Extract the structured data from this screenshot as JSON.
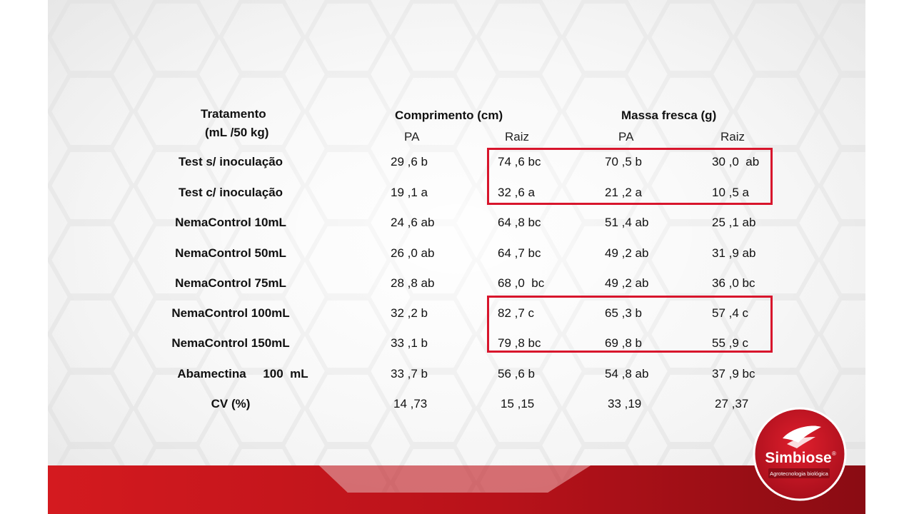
{
  "header": {
    "tratamento_line1": "Tratamento",
    "tratamento_line2": "(mL /50 kg)",
    "comprimento": "Comprimento (cm)",
    "massa": "Massa fresca (g)",
    "sub": [
      "PA",
      "Raiz",
      "PA",
      "Raiz"
    ]
  },
  "rows": [
    {
      "label": "Test s/ inoculação",
      "values": [
        "29 ,6 b",
        "74 ,6 bc",
        "70 ,5 b",
        "30 ,0  ab"
      ]
    },
    {
      "label": "Test c/ inoculação",
      "values": [
        "19 ,1 a",
        "32 ,6 a",
        "21 ,2 a",
        "10 ,5 a"
      ]
    },
    {
      "label": "NemaControl 10mL",
      "values": [
        "24 ,6 ab",
        "64 ,8 bc",
        "51 ,4 ab",
        "25 ,1 ab"
      ]
    },
    {
      "label": "NemaControl 50mL",
      "values": [
        "26 ,0 ab",
        "64 ,7 bc",
        "49 ,2 ab",
        "31 ,9 ab"
      ]
    },
    {
      "label": "NemaControl 75mL",
      "values": [
        "28 ,8 ab",
        "68 ,0  bc",
        "49 ,2 ab",
        "36 ,0 bc"
      ]
    },
    {
      "label": "NemaControl 100mL",
      "values": [
        "32 ,2 b",
        "82 ,7 c",
        "65 ,3 b",
        "57 ,4 c"
      ]
    },
    {
      "label": "NemaControl 150mL",
      "values": [
        "33 ,1 b",
        "79 ,8 bc",
        "69 ,8 b",
        "55 ,9 c"
      ]
    },
    {
      "label": "Abamectina     100  mL",
      "values": [
        "33 ,7 b",
        "56 ,6 b",
        "54 ,8 ab",
        "37 ,9 bc"
      ]
    },
    {
      "label": "CV (%)",
      "values": [
        "14 ,73",
        "15 ,15",
        "33 ,19",
        "27 ,37"
      ]
    }
  ],
  "logo": {
    "brand": "Simbiose",
    "registered": "®",
    "tagline": "Agrotecnologia biológica"
  },
  "colors": {
    "highlight": "#d8152c",
    "brand_red": "#c8102e",
    "band_dark": "#8f0d14"
  }
}
